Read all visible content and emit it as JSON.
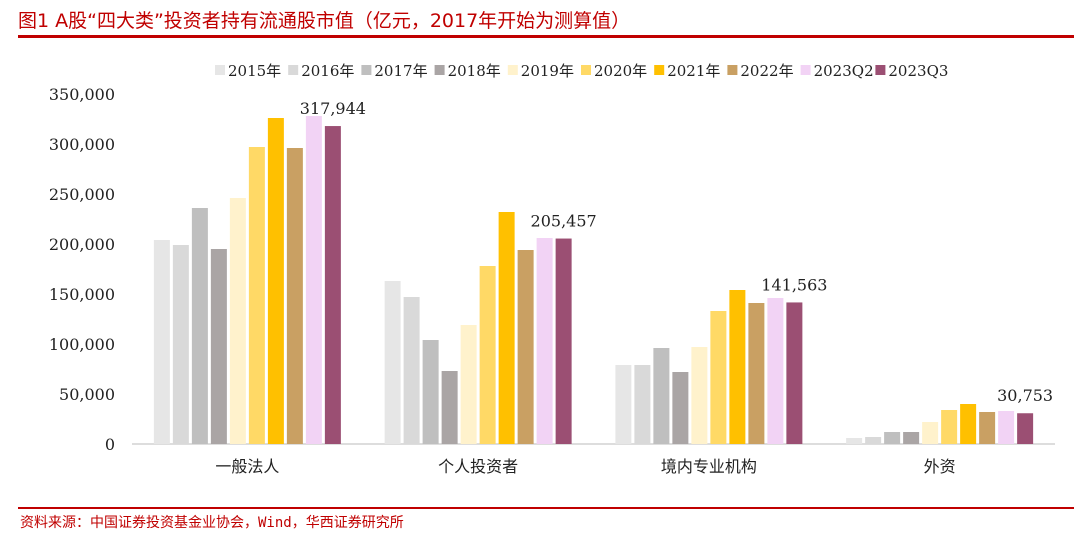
{
  "title": "图1  A股“四大类”投资者持有流通股市值（亿元，2017年开始为测算值）",
  "source": "资料来源：中国证券投资基金业协会，Wind，华西证券研究所",
  "chart_data": {
    "type": "bar",
    "categories": [
      "一般法人",
      "个人投资者",
      "境内专业机构",
      "外资"
    ],
    "ylim": [
      0,
      350000
    ],
    "yticks": [
      "0",
      "50,000",
      "100,000",
      "150,000",
      "200,000",
      "250,000",
      "300,000",
      "350,000"
    ],
    "legend_position": "top",
    "grid": false,
    "series": [
      {
        "name": "2015年",
        "color": "#e6e6e6",
        "values": [
          204000,
          163000,
          79000,
          6000
        ]
      },
      {
        "name": "2016年",
        "color": "#d9d9d9",
        "values": [
          199000,
          147000,
          79000,
          7000
        ]
      },
      {
        "name": "2017年",
        "color": "#bfbfbf",
        "values": [
          236000,
          104000,
          96000,
          12000
        ]
      },
      {
        "name": "2018年",
        "color": "#aaa5a5",
        "values": [
          195000,
          73000,
          72000,
          12000
        ]
      },
      {
        "name": "2019年",
        "color": "#fff2cc",
        "values": [
          246000,
          119000,
          97000,
          22000
        ]
      },
      {
        "name": "2020年",
        "color": "#ffd966",
        "values": [
          297000,
          178000,
          133000,
          34000
        ]
      },
      {
        "name": "2021年",
        "color": "#ffc000",
        "values": [
          326000,
          232000,
          154000,
          40000
        ]
      },
      {
        "name": "2022年",
        "color": "#c9a063",
        "values": [
          296000,
          194000,
          141000,
          32000
        ]
      },
      {
        "name": "2023Q2",
        "color": "#f2d3f5",
        "values": [
          328000,
          206000,
          146000,
          33000
        ]
      },
      {
        "name": "2023Q3",
        "color": "#9b4f73",
        "values": [
          317944,
          205457,
          141563,
          30753
        ]
      }
    ],
    "data_labels": [
      "317,944",
      "205,457",
      "141,563",
      "30,753"
    ]
  }
}
